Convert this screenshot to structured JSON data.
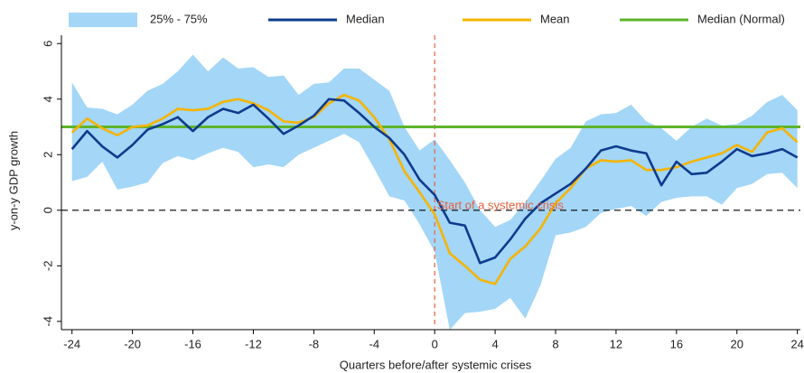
{
  "chart_data": {
    "type": "line",
    "x_label": "Quarters before/after systemic crises",
    "y_label": "y-on-y GDP growth",
    "x": [
      -24,
      -23,
      -22,
      -21,
      -20,
      -19,
      -18,
      -17,
      -16,
      -15,
      -14,
      -13,
      -12,
      -11,
      -10,
      -9,
      -8,
      -7,
      -6,
      -5,
      -4,
      -3,
      -2,
      -1,
      0,
      1,
      2,
      3,
      4,
      5,
      6,
      7,
      8,
      9,
      10,
      11,
      12,
      13,
      14,
      15,
      16,
      17,
      18,
      19,
      20,
      21,
      22,
      23,
      24
    ],
    "xlim": [
      -24.7,
      24.2
    ],
    "ylim": [
      -4.2,
      6.3
    ],
    "xticks": [
      -24,
      -20,
      -16,
      -12,
      -8,
      -4,
      0,
      4,
      8,
      12,
      16,
      20,
      24
    ],
    "yticks": [
      -4,
      -2,
      0,
      2,
      4,
      6
    ],
    "band": {
      "name": "25% - 75%",
      "color": "#a3d6f7",
      "upper": [
        4.6,
        3.7,
        3.65,
        3.45,
        3.8,
        4.3,
        4.55,
        5.0,
        5.6,
        5.0,
        5.5,
        5.1,
        5.15,
        4.8,
        4.85,
        4.15,
        4.55,
        4.6,
        5.1,
        5.1,
        4.7,
        4.3,
        3.0,
        2.15,
        2.55,
        1.8,
        1.0,
        0.0,
        -0.6,
        -0.35,
        0.3,
        1.05,
        1.85,
        2.25,
        3.2,
        3.45,
        3.5,
        3.8,
        3.2,
        2.95,
        2.5,
        3.0,
        3.3,
        3.05,
        3.1,
        3.4,
        3.9,
        4.15,
        3.6
      ],
      "lower": [
        1.05,
        1.2,
        1.75,
        0.75,
        0.85,
        1.0,
        1.7,
        1.95,
        1.8,
        2.05,
        2.25,
        2.1,
        1.55,
        1.65,
        1.55,
        2.0,
        2.25,
        2.5,
        2.75,
        2.45,
        1.5,
        0.5,
        0.35,
        -0.5,
        -1.5,
        -4.3,
        -3.7,
        -3.65,
        -3.55,
        -3.15,
        -3.9,
        -2.7,
        -0.9,
        -0.8,
        -0.6,
        -0.1,
        0.05,
        0.15,
        -0.2,
        0.3,
        0.45,
        0.5,
        0.5,
        0.2,
        0.8,
        0.95,
        1.3,
        1.35,
        0.8
      ]
    },
    "series": [
      {
        "name": "Median",
        "color": "#0e3b8e",
        "values": [
          2.2,
          2.85,
          2.3,
          1.9,
          2.35,
          2.9,
          3.1,
          3.35,
          2.85,
          3.35,
          3.65,
          3.5,
          3.8,
          3.3,
          2.75,
          3.05,
          3.4,
          4.0,
          3.95,
          3.5,
          3.0,
          2.6,
          2.0,
          1.1,
          0.55,
          -0.45,
          -0.55,
          -1.9,
          -1.7,
          -1.05,
          -0.3,
          0.25,
          0.6,
          0.95,
          1.5,
          2.15,
          2.3,
          2.15,
          2.05,
          0.9,
          1.75,
          1.3,
          1.35,
          1.75,
          2.2,
          1.95,
          2.05,
          2.2,
          1.9
        ]
      },
      {
        "name": "Mean",
        "color": "#f5b400",
        "values": [
          2.8,
          3.3,
          2.95,
          2.7,
          3.0,
          3.05,
          3.3,
          3.65,
          3.6,
          3.65,
          3.9,
          4.0,
          3.85,
          3.6,
          3.2,
          3.15,
          3.35,
          3.85,
          4.15,
          3.95,
          3.35,
          2.55,
          1.4,
          0.65,
          -0.15,
          -1.55,
          -2.0,
          -2.5,
          -2.65,
          -1.75,
          -1.3,
          -0.65,
          0.25,
          0.8,
          1.5,
          1.8,
          1.75,
          1.8,
          1.45,
          1.45,
          1.55,
          1.75,
          1.9,
          2.05,
          2.35,
          2.1,
          2.8,
          2.95,
          2.45
        ]
      }
    ],
    "reference": {
      "name": "Median (Normal)",
      "color": "#5db42a",
      "value": 3
    },
    "zero_line": 0,
    "crisis_line": {
      "x": 0,
      "color": "#e8603a"
    },
    "annotation": {
      "text": "Start of a systemic crisis",
      "x": 0.15,
      "y": 0.15,
      "color": "#e8603a"
    }
  }
}
